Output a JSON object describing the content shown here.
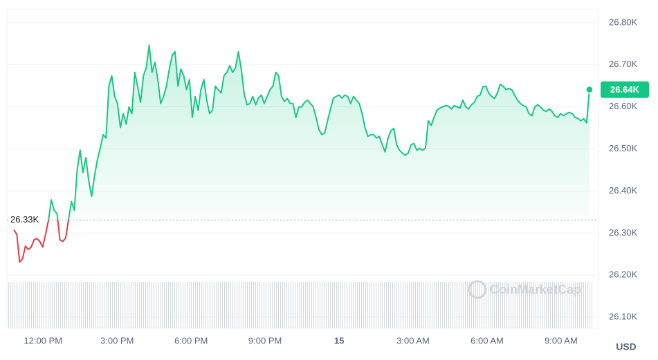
{
  "chart_data": {
    "type": "line",
    "color": "#16c784",
    "below_color": "#ea3943",
    "grid": true,
    "axis_unit": "USD",
    "watermark": "CoinMarketCap",
    "last_label": "26.64K",
    "reference": {
      "value": 26331,
      "label": "26.33K"
    },
    "xlim": [
      -88,
      1351
    ],
    "xticks": [
      {
        "value": 0,
        "label": "12:00 PM"
      },
      {
        "value": 180,
        "label": "3:00 PM"
      },
      {
        "value": 360,
        "label": "6:00 PM"
      },
      {
        "value": 540,
        "label": "9:00 PM"
      },
      {
        "value": 720,
        "label": "15"
      },
      {
        "value": 900,
        "label": "3:00 AM"
      },
      {
        "value": 1080,
        "label": "6:00 AM"
      },
      {
        "value": 1260,
        "label": "9:00 AM"
      }
    ],
    "ylim": [
      26074,
      26831
    ],
    "yticks": [
      {
        "value": 26800,
        "label": "26.80K"
      },
      {
        "value": 26700,
        "label": "26.70K"
      },
      {
        "value": 26600,
        "label": "26.60K"
      },
      {
        "value": 26500,
        "label": "26.50K"
      },
      {
        "value": 26400,
        "label": "26.40K"
      },
      {
        "value": 26300,
        "label": "26.30K"
      },
      {
        "value": 26200,
        "label": "26.20K"
      },
      {
        "value": 26100,
        "label": "26.10K"
      }
    ],
    "x": [
      -71,
      -64,
      -57,
      -50,
      -43,
      -36,
      -29,
      -22,
      -15,
      -8,
      -1,
      6,
      13,
      20,
      27,
      34,
      41,
      48,
      55,
      62,
      69,
      76,
      83,
      90,
      97,
      104,
      111,
      118,
      125,
      132,
      139,
      146,
      153,
      160,
      167,
      174,
      181,
      188,
      195,
      202,
      209,
      216,
      223,
      230,
      237,
      244,
      251,
      258,
      265,
      272,
      279,
      286,
      293,
      300,
      307,
      314,
      321,
      328,
      335,
      342,
      349,
      356,
      363,
      370,
      377,
      384,
      391,
      398,
      405,
      412,
      419,
      426,
      433,
      440,
      447,
      454,
      461,
      468,
      475,
      482,
      489,
      496,
      503,
      510,
      517,
      524,
      531,
      538,
      545,
      552,
      559,
      566,
      573,
      580,
      587,
      594,
      601,
      608,
      615,
      622,
      629,
      636,
      643,
      650,
      657,
      664,
      671,
      678,
      685,
      692,
      699,
      706,
      713,
      720,
      727,
      734,
      741,
      748,
      755,
      762,
      769,
      776,
      783,
      790,
      797,
      804,
      811,
      818,
      825,
      832,
      839,
      846,
      853,
      860,
      867,
      874,
      881,
      888,
      895,
      902,
      909,
      916,
      923,
      930,
      937,
      944,
      951,
      958,
      965,
      972,
      979,
      986,
      993,
      1000,
      1007,
      1014,
      1021,
      1028,
      1035,
      1042,
      1049,
      1056,
      1063,
      1070,
      1077,
      1084,
      1091,
      1098,
      1105,
      1112,
      1119,
      1126,
      1133,
      1140,
      1147,
      1154,
      1161,
      1168,
      1175,
      1182,
      1189,
      1196,
      1203,
      1210,
      1217,
      1224,
      1231,
      1238,
      1245,
      1252,
      1259,
      1266,
      1273,
      1280,
      1287,
      1294,
      1301,
      1308,
      1315,
      1322,
      1329
    ],
    "values": [
      26308,
      26297,
      26231,
      26239,
      26269,
      26261,
      26267,
      26284,
      26287,
      26280,
      26267,
      26297,
      26330,
      26379,
      26354,
      26346,
      26284,
      26280,
      26289,
      26333,
      26375,
      26354,
      26452,
      26497,
      26444,
      26480,
      26425,
      26387,
      26436,
      26474,
      26502,
      26534,
      26526,
      26649,
      26674,
      26625,
      26608,
      26551,
      26584,
      26559,
      26600,
      26584,
      26682,
      26649,
      26611,
      26674,
      26693,
      26747,
      26682,
      26706,
      26665,
      26608,
      26625,
      26649,
      26690,
      26723,
      26731,
      26649,
      26690,
      26674,
      26641,
      26665,
      26575,
      26625,
      26592,
      26641,
      26665,
      26616,
      26584,
      26592,
      26649,
      26641,
      26633,
      26674,
      26682,
      26698,
      26682,
      26693,
      26731,
      26690,
      26633,
      26605,
      26608,
      26625,
      26605,
      26621,
      26628,
      26608,
      26625,
      26641,
      26649,
      26682,
      26674,
      26625,
      26613,
      26620,
      26608,
      26608,
      26575,
      26600,
      26600,
      26611,
      26616,
      26608,
      26600,
      26575,
      26546,
      26534,
      26538,
      26567,
      26595,
      26621,
      26625,
      26628,
      26621,
      26628,
      26625,
      26608,
      26625,
      26616,
      26608,
      26584,
      26551,
      26530,
      26534,
      26534,
      26526,
      26530,
      26510,
      26493,
      26526,
      26543,
      26549,
      26510,
      26497,
      26490,
      26485,
      26490,
      26510,
      26513,
      26497,
      26502,
      26497,
      26502,
      26567,
      26556,
      26575,
      26592,
      26597,
      26600,
      26603,
      26602,
      26595,
      26603,
      26600,
      26597,
      26616,
      26600,
      26595,
      26605,
      26611,
      26625,
      26628,
      26648,
      26649,
      26633,
      26625,
      26620,
      26633,
      26654,
      26649,
      26641,
      26644,
      26641,
      26628,
      26616,
      26608,
      26603,
      26600,
      26584,
      26579,
      26600,
      26605,
      26600,
      26592,
      26589,
      26595,
      26589,
      26579,
      26575,
      26584,
      26579,
      26584,
      26587,
      26584,
      26575,
      26572,
      26567,
      26572,
      26562,
      26641
    ]
  }
}
